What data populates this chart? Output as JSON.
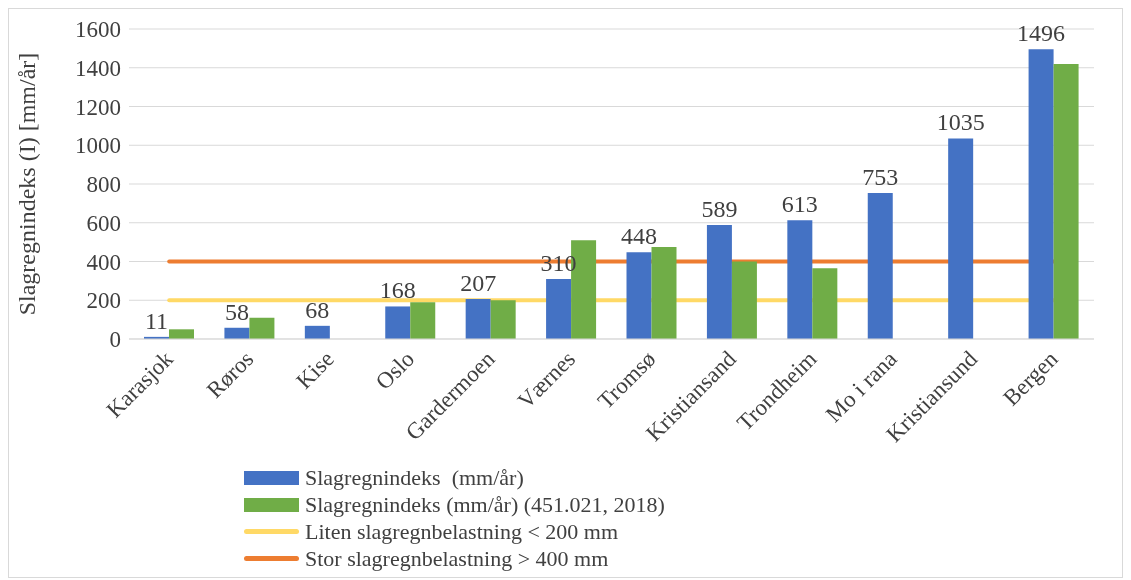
{
  "chart_data": {
    "type": "bar",
    "ylabel": "Slagregnindeks (I) [mm/år]",
    "categories": [
      "Karasjok",
      "Røros",
      "Kise",
      "Oslo",
      "Gardermoen",
      "Værnes",
      "Tromsø",
      "Kristiansand",
      "Trondheim",
      "Mo i rana",
      "Kristiansund",
      "Bergen"
    ],
    "series": [
      {
        "name": "Slagregnindeks  (mm/år)",
        "color": "#4472c4",
        "values": [
          11,
          58,
          68,
          168,
          207,
          310,
          448,
          589,
          613,
          753,
          1035,
          1496
        ],
        "value_labels": [
          "11",
          "58",
          "68",
          "168",
          "207",
          "310",
          "448",
          "589",
          "613",
          "753",
          "1035",
          "1496"
        ]
      },
      {
        "name": "Slagregnindeks (mm/år) (451.021, 2018)",
        "color": "#70ad47",
        "values": [
          50,
          110,
          null,
          190,
          200,
          510,
          475,
          400,
          365,
          null,
          null,
          1420
        ]
      }
    ],
    "ref_lines": [
      {
        "axis": "y",
        "value": 200,
        "label": "Liten slagregnbelastning < 200 mm",
        "color": "#ffd966"
      },
      {
        "axis": "y",
        "value": 400,
        "label": "Stor slagregnbelastning > 400 mm",
        "color": "#ed7d31"
      }
    ],
    "ylim": [
      0,
      1600
    ],
    "yticks": [
      0,
      200,
      400,
      600,
      800,
      1000,
      1200,
      1400,
      1600
    ],
    "grid": "y",
    "legend": "bottom"
  }
}
